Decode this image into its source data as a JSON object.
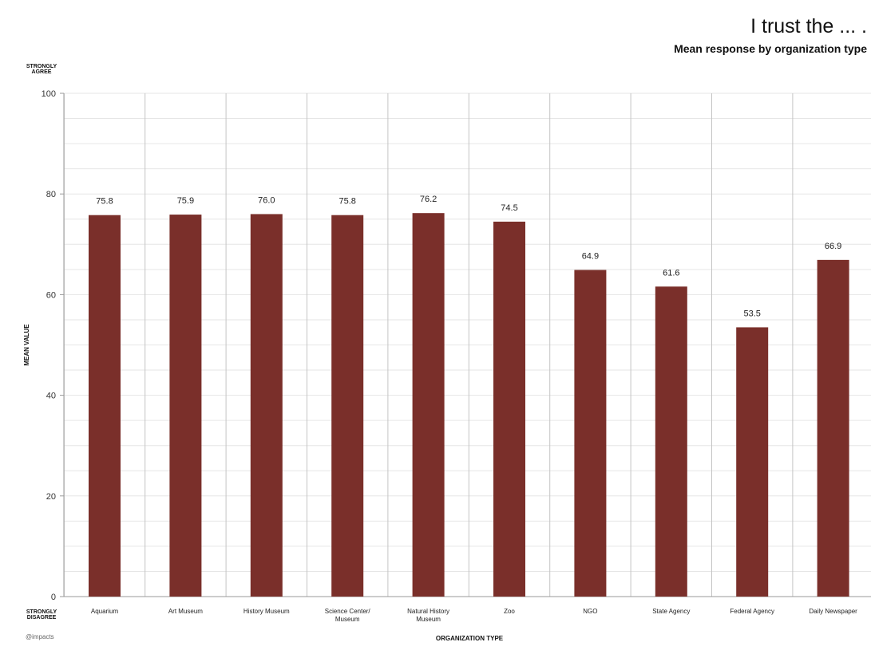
{
  "chart_data": {
    "type": "bar",
    "title": "I trust the ... .",
    "subtitle": "Mean response by organization type",
    "xlabel": "ORGANIZATION TYPE",
    "ylabel": "MEAN VALUE",
    "y_top_anchor": [
      "STRONGLY",
      "AGREE"
    ],
    "y_bottom_anchor": [
      "STRONGLY",
      "DISAGREE"
    ],
    "ylim": [
      0,
      100
    ],
    "yticks": [
      0,
      20,
      40,
      60,
      80,
      100
    ],
    "categories": [
      [
        "Aquarium"
      ],
      [
        "Art Museum"
      ],
      [
        "History Museum"
      ],
      [
        "Science Center/",
        "Museum"
      ],
      [
        "Natural History",
        "Museum"
      ],
      [
        "Zoo"
      ],
      [
        "NGO"
      ],
      [
        "State Agency"
      ],
      [
        "Federal Agency"
      ],
      [
        "Daily Newspaper"
      ]
    ],
    "values": [
      75.8,
      75.9,
      76.0,
      75.8,
      76.2,
      74.5,
      64.9,
      61.6,
      53.5,
      66.9
    ],
    "data_labels": [
      "75.8",
      "75.9",
      "76.0",
      "75.8",
      "76.2",
      "74.5",
      "64.9",
      "61.6",
      "53.5",
      "66.9"
    ],
    "grid": true,
    "colors": {
      "bar": "#7a2f2a",
      "gridline": "#e6e6e6",
      "separator": "#c4c4c4",
      "axis": "#999999"
    }
  },
  "credit": "@impacts"
}
